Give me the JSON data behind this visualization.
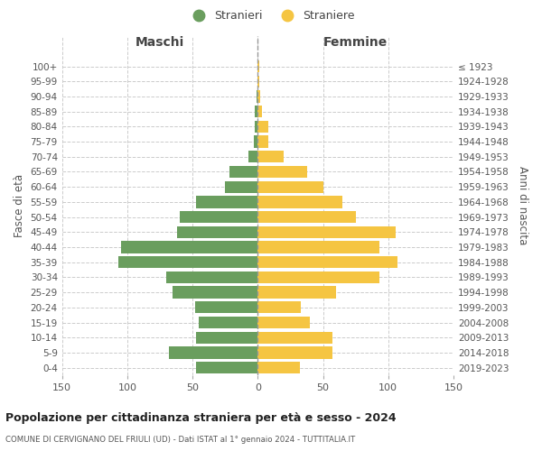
{
  "age_groups": [
    "0-4",
    "5-9",
    "10-14",
    "15-19",
    "20-24",
    "25-29",
    "30-34",
    "35-39",
    "40-44",
    "45-49",
    "50-54",
    "55-59",
    "60-64",
    "65-69",
    "70-74",
    "75-79",
    "80-84",
    "85-89",
    "90-94",
    "95-99",
    "100+"
  ],
  "birth_years": [
    "2019-2023",
    "2014-2018",
    "2009-2013",
    "2004-2008",
    "1999-2003",
    "1994-1998",
    "1989-1993",
    "1984-1988",
    "1979-1983",
    "1974-1978",
    "1969-1973",
    "1964-1968",
    "1959-1963",
    "1954-1958",
    "1949-1953",
    "1944-1948",
    "1939-1943",
    "1934-1938",
    "1929-1933",
    "1924-1928",
    "≤ 1923"
  ],
  "males": [
    47,
    68,
    47,
    45,
    48,
    65,
    70,
    107,
    105,
    62,
    60,
    47,
    25,
    22,
    7,
    3,
    2,
    2,
    1,
    0,
    0
  ],
  "females": [
    32,
    57,
    57,
    40,
    33,
    60,
    93,
    107,
    93,
    106,
    75,
    65,
    50,
    38,
    20,
    8,
    8,
    3,
    2,
    1,
    1
  ],
  "male_color": "#6a9e5e",
  "female_color": "#f5c542",
  "background_color": "#ffffff",
  "grid_color": "#cccccc",
  "title": "Popolazione per cittadinanza straniera per età e sesso - 2024",
  "subtitle": "COMUNE DI CERVIGNANO DEL FRIULI (UD) - Dati ISTAT al 1° gennaio 2024 - TUTTITALIA.IT",
  "xlabel_left": "Maschi",
  "xlabel_right": "Femmine",
  "ylabel_left": "Fasce di età",
  "ylabel_right": "Anni di nascita",
  "legend_male": "Stranieri",
  "legend_female": "Straniere",
  "xlim": 150,
  "bar_height": 0.8
}
